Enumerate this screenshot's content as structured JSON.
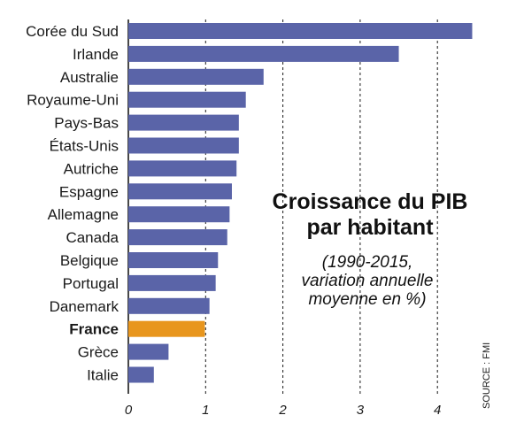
{
  "chart_data": {
    "type": "bar",
    "orientation": "horizontal",
    "title": "Croissance du PIB par habitant",
    "title_lines": [
      "Croissance du PIB",
      "par habitant"
    ],
    "subtitle": "(1990-2015, variation annuelle moyenne en %)",
    "subtitle_lines": [
      "(1990-2015,",
      "variation annuelle",
      "moyenne en %)"
    ],
    "source": "SOURCE : FMI",
    "categories": [
      "Corée du Sud",
      "Irlande",
      "Australie",
      "Royaume-Uni",
      "Pays-Bas",
      "États-Unis",
      "Autriche",
      "Espagne",
      "Allemagne",
      "Canada",
      "Belgique",
      "Portugal",
      "Danemark",
      "France",
      "Grèce",
      "Italie"
    ],
    "values": [
      4.45,
      3.5,
      1.75,
      1.52,
      1.43,
      1.43,
      1.4,
      1.34,
      1.31,
      1.28,
      1.16,
      1.13,
      1.05,
      0.99,
      0.52,
      0.33
    ],
    "highlight": "France",
    "xlim": [
      0,
      4.5
    ],
    "xticks": [
      0,
      1,
      2,
      3,
      4
    ],
    "grid": "vertical dashed",
    "colors": {
      "bar": "#5a64a8",
      "highlight": "#e8961e",
      "grid": "#1a1a1a"
    }
  }
}
